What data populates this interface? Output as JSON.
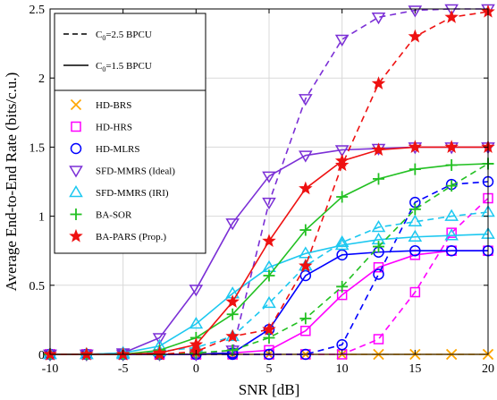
{
  "chart_data": {
    "type": "line",
    "xlabel": "SNR [dB]",
    "ylabel": "Average End-to-End Rate (bits/c.u.)",
    "xlim": [
      -10,
      20
    ],
    "ylim": [
      0,
      2.5
    ],
    "xticks": [
      -10,
      -5,
      0,
      5,
      10,
      15,
      20
    ],
    "yticks": [
      0,
      0.5,
      1,
      1.5,
      2,
      2.5
    ],
    "x": [
      -10,
      -7.5,
      -5,
      -2.5,
      0,
      2.5,
      5,
      7.5,
      10,
      12.5,
      15,
      17.5,
      20
    ],
    "grid": true,
    "legend_position": "top-left",
    "style_legend": [
      {
        "label_main": "C",
        "label_sub": "0",
        "label_rest": "=2.5 BPCU",
        "dash": "dashed"
      },
      {
        "label_main": "C",
        "label_sub": "0",
        "label_rest": "=1.5 BPCU",
        "dash": "solid"
      }
    ],
    "series": [
      {
        "name": "HD-BRS",
        "color": "#FFA500",
        "marker": "x",
        "values_c25": [
          0,
          0,
          0,
          0,
          0,
          0,
          0,
          0,
          0,
          0,
          0,
          0,
          0
        ],
        "values_c15": [
          0,
          0,
          0,
          0,
          0,
          0,
          0,
          0,
          0,
          0,
          0,
          0,
          0
        ]
      },
      {
        "name": "HD-HRS",
        "color": "#FF00FF",
        "marker": "square",
        "values_c25": [
          0,
          0,
          0,
          0,
          0,
          0,
          0,
          0,
          0,
          0.11,
          0.45,
          0.88,
          1.13
        ],
        "values_c15": [
          0,
          0,
          0,
          0,
          0,
          0.01,
          0.03,
          0.17,
          0.43,
          0.63,
          0.72,
          0.75,
          0.75
        ]
      },
      {
        "name": "HD-MLRS",
        "color": "#0000FF",
        "marker": "circle",
        "values_c25": [
          0,
          0,
          0,
          0,
          0,
          0,
          0,
          0,
          0.07,
          0.58,
          1.1,
          1.23,
          1.25
        ],
        "values_c15": [
          0,
          0,
          0,
          0,
          0,
          0.01,
          0.18,
          0.57,
          0.72,
          0.74,
          0.75,
          0.75,
          0.75
        ]
      },
      {
        "name": "SFD-MMRS (Ideal)",
        "color": "#7B2FD6",
        "marker": "triangle-down",
        "values_c25": [
          0,
          0,
          0,
          0,
          0,
          0.03,
          1.1,
          1.85,
          2.28,
          2.44,
          2.49,
          2.5,
          2.5
        ],
        "values_c15": [
          0,
          0,
          0.01,
          0.12,
          0.47,
          0.95,
          1.29,
          1.44,
          1.48,
          1.49,
          1.5,
          1.5,
          1.5
        ]
      },
      {
        "name": "SFD-MMRS (IRI)",
        "color": "#1CC8F0",
        "marker": "triangle-up",
        "values_c25": [
          0,
          0,
          0,
          0.02,
          0.05,
          0.13,
          0.37,
          0.64,
          0.81,
          0.92,
          0.96,
          1.0,
          1.03
        ],
        "values_c15": [
          0,
          0,
          0.01,
          0.06,
          0.22,
          0.44,
          0.63,
          0.73,
          0.79,
          0.83,
          0.85,
          0.86,
          0.87
        ]
      },
      {
        "name": "BA-SOR",
        "color": "#22C022",
        "marker": "plus",
        "values_c25": [
          0,
          0,
          0,
          0,
          0.01,
          0.03,
          0.12,
          0.26,
          0.49,
          0.78,
          1.05,
          1.22,
          1.38
        ],
        "values_c15": [
          0,
          0,
          0,
          0.03,
          0.12,
          0.29,
          0.57,
          0.9,
          1.14,
          1.27,
          1.34,
          1.37,
          1.38
        ]
      },
      {
        "name": "BA-PARS (Prop.)",
        "color": "#EE1111",
        "marker": "star",
        "values_c25": [
          0,
          0,
          0,
          0,
          0.02,
          0.13,
          0.18,
          0.64,
          1.37,
          1.96,
          2.3,
          2.44,
          2.48
        ],
        "values_c15": [
          0,
          0,
          0,
          0.01,
          0.07,
          0.38,
          0.82,
          1.2,
          1.4,
          1.48,
          1.5,
          1.5,
          1.5
        ]
      }
    ]
  }
}
